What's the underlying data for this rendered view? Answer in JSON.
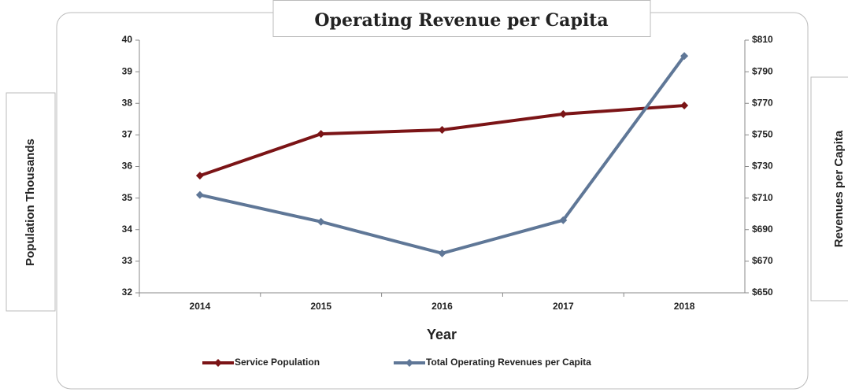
{
  "chart_data": {
    "type": "line",
    "title": "Operating Revenue per Capita",
    "x_label": "Year",
    "y_label": "Population Thousands",
    "y2_label": "Revenues per Capita",
    "categories": [
      "2014",
      "2015",
      "2016",
      "2017",
      "2018"
    ],
    "series": [
      {
        "name": "Service Population",
        "color": "#7b1416",
        "values": [
          35.71,
          37.03,
          37.16,
          37.66,
          37.93
        ]
      },
      {
        "name": "Total Operating Revenues per Capita",
        "color": "#5f7797",
        "axis": "y2",
        "values": [
          712,
          695,
          675,
          696,
          800
        ]
      }
    ],
    "ylim": [
      32,
      40
    ],
    "yticks": [
      32,
      33,
      34,
      35,
      36,
      37,
      38,
      39,
      40
    ],
    "y2lim": [
      650,
      810
    ],
    "y2ticks": [
      {
        "value": 650,
        "label": "$650"
      },
      {
        "value": 670,
        "label": "$670"
      },
      {
        "value": 690,
        "label": "$690"
      },
      {
        "value": 710,
        "label": "$710"
      },
      {
        "value": 730,
        "label": "$730"
      },
      {
        "value": 750,
        "label": "$750"
      },
      {
        "value": 770,
        "label": "$770"
      },
      {
        "value": 790,
        "label": "$790"
      },
      {
        "value": 810,
        "label": "$810"
      }
    ],
    "grid": false
  }
}
